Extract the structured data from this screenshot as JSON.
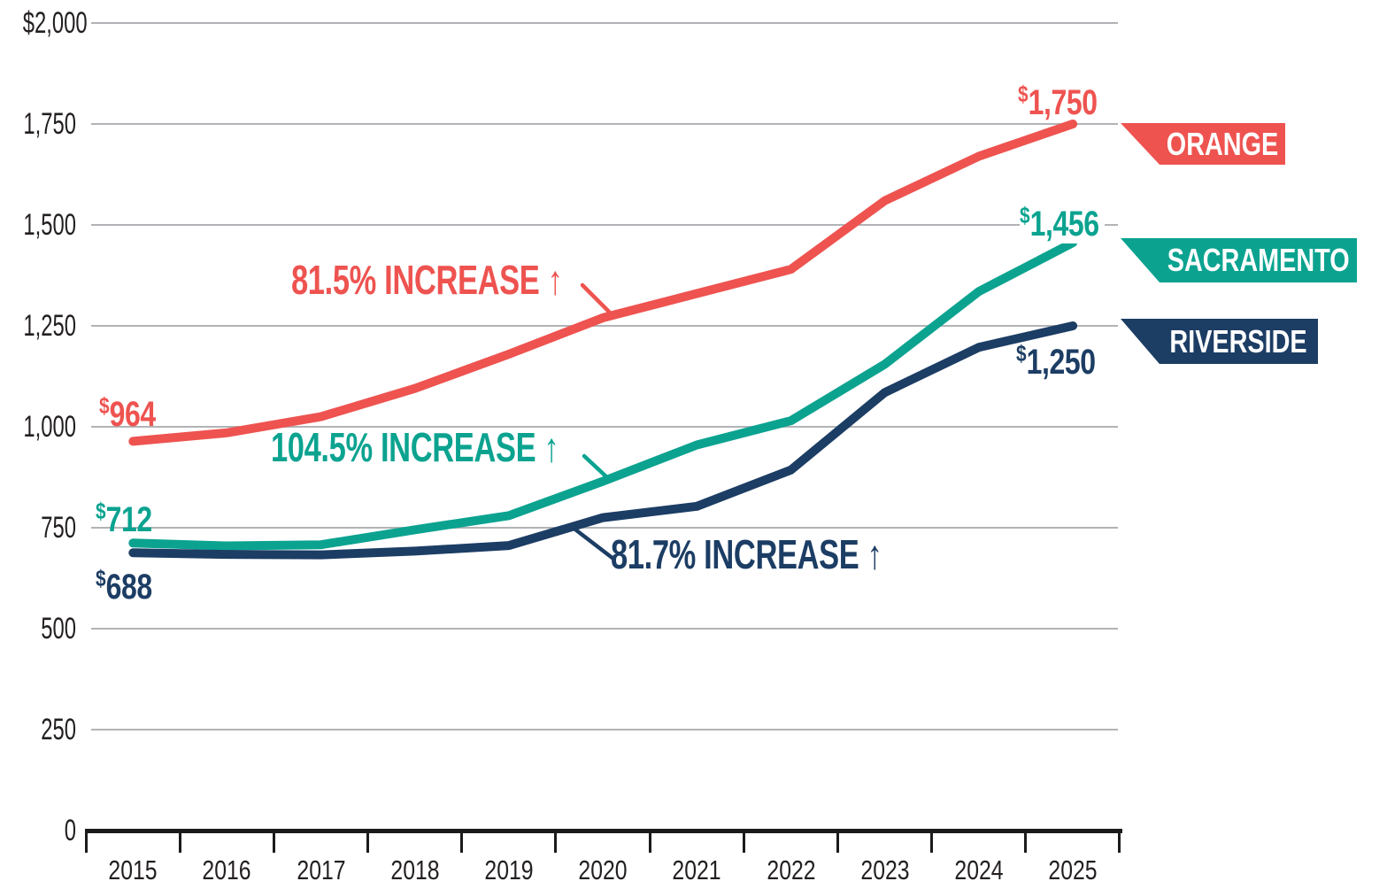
{
  "colors": {
    "orange_series": "#EE5350",
    "sacramento_series": "#0BA390",
    "riverside_series": "#1C3D64",
    "grid": "#B1B3B6",
    "axis": "#1B1B1B",
    "tick_text": "#231F20"
  },
  "chart_data": {
    "type": "line",
    "title": "",
    "x_labels": [
      "2015",
      "2016",
      "2017",
      "2018",
      "2019",
      "2020",
      "2021",
      "2022",
      "2023",
      "2024",
      "2025"
    ],
    "y_tick_labels": [
      "$2,000",
      "1,750",
      "1,500",
      "1,250",
      "1,000",
      "750",
      "500",
      "250",
      "0"
    ],
    "y_tick_values": [
      2000,
      1750,
      1500,
      1250,
      1000,
      750,
      500,
      250,
      0
    ],
    "ylim": [
      0,
      2000
    ],
    "grid": "horizontal",
    "legend_position": "right",
    "series": [
      {
        "name": "ORANGE",
        "color": "#EE5350",
        "values": [
          964,
          985,
          1025,
          1095,
          1180,
          1270,
          1330,
          1390,
          1560,
          1670,
          1750
        ],
        "start_label": {
          "sym": "$",
          "num": "964"
        },
        "end_label": {
          "sym": "$",
          "num": "1,750"
        },
        "annotation": "81.5% INCREASE ↑"
      },
      {
        "name": "SACRAMENTO",
        "color": "#0BA390",
        "values": [
          712,
          705,
          708,
          745,
          780,
          865,
          955,
          1015,
          1155,
          1335,
          1456
        ],
        "start_label": {
          "sym": "$",
          "num": "712"
        },
        "end_label": {
          "sym": "$",
          "num": "1,456"
        },
        "annotation": "104.5% INCREASE ↑"
      },
      {
        "name": "RIVERSIDE",
        "color": "#1C3D64",
        "values": [
          688,
          684,
          683,
          692,
          706,
          775,
          803,
          893,
          1085,
          1197,
          1250
        ],
        "start_label": {
          "sym": "$",
          "num": "688"
        },
        "end_label": {
          "sym": "$",
          "num": "1,250"
        },
        "annotation": "81.7% INCREASE ↑"
      }
    ]
  }
}
